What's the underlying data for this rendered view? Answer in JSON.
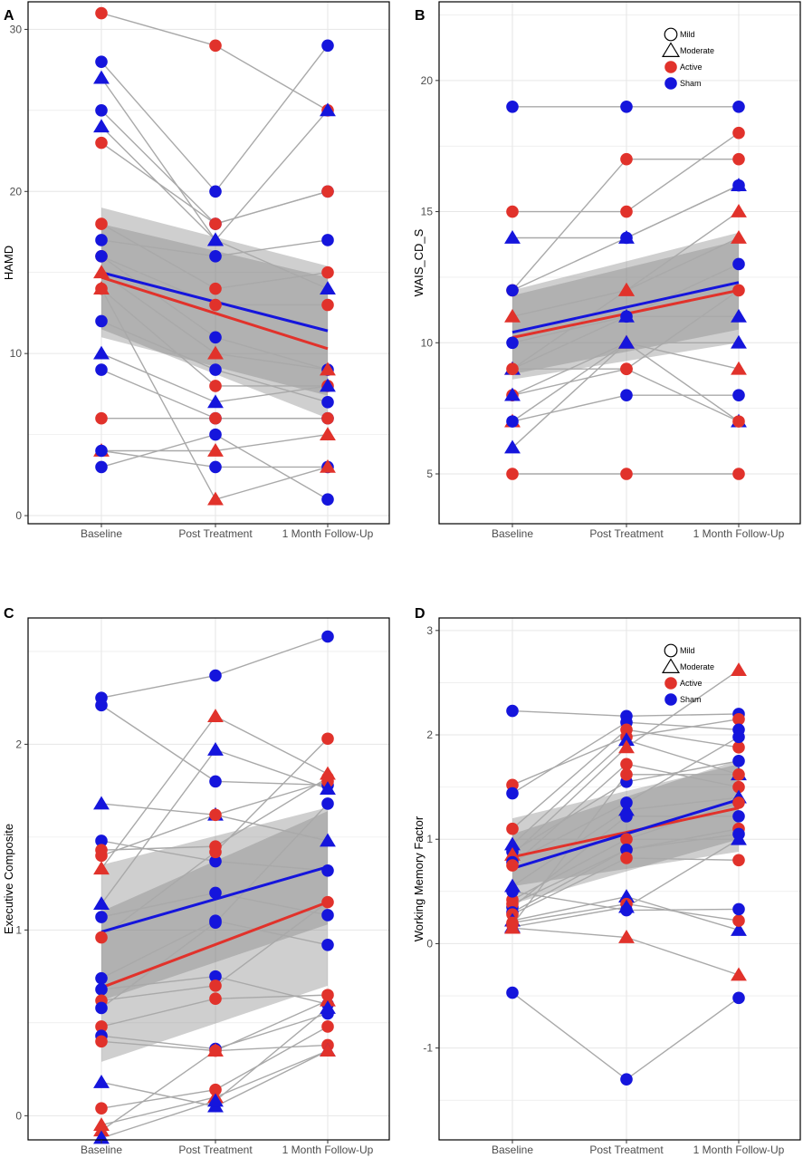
{
  "colors": {
    "active": "#E1322B",
    "sham": "#1515DC",
    "line": "#A9A9A9",
    "band": "#808080",
    "grid": "#E6E6E6",
    "frame": "#000000"
  },
  "legend": {
    "mild": "Mild",
    "moderate": "Moderate",
    "active": "Active",
    "sham": "Sham"
  },
  "chart_data": [
    {
      "panel": "A",
      "type": "scatter",
      "xlabel": "",
      "ylabel": "HAMD",
      "categories": [
        "Baseline",
        "Post Treatment",
        "1 Month Follow-Up"
      ],
      "ylim": [
        -0.5,
        31.7
      ],
      "yticks": [
        0,
        10,
        20,
        30
      ],
      "legend": false,
      "points": [
        {
          "g": "active",
          "s": "mild",
          "v": [
            31,
            29,
            25
          ]
        },
        {
          "g": "sham",
          "s": "mild",
          "v": [
            28,
            20,
            29
          ]
        },
        {
          "g": "sham",
          "s": "moderate",
          "v": [
            27,
            17,
            25
          ]
        },
        {
          "g": "sham",
          "s": "mild",
          "v": [
            25,
            18,
            20
          ]
        },
        {
          "g": "sham",
          "s": "moderate",
          "v": [
            24,
            17,
            14
          ]
        },
        {
          "g": "active",
          "s": "mild",
          "v": [
            23,
            18,
            20
          ]
        },
        {
          "g": "active",
          "s": "mild",
          "v": [
            18,
            14,
            15
          ]
        },
        {
          "g": "sham",
          "s": "mild",
          "v": [
            17,
            16,
            17
          ]
        },
        {
          "g": "active",
          "s": "mild",
          "v": [
            16,
            13,
            13
          ]
        },
        {
          "g": "sham",
          "s": "mild",
          "v": [
            16,
            11,
            9
          ]
        },
        {
          "g": "active",
          "s": "moderate",
          "v": [
            15,
            10,
            9
          ]
        },
        {
          "g": "active",
          "s": "mild",
          "v": [
            14,
            8,
            8
          ]
        },
        {
          "g": "sham",
          "s": "mild",
          "v": [
            12,
            9,
            7
          ]
        },
        {
          "g": "sham",
          "s": "moderate",
          "v": [
            10,
            7,
            8
          ]
        },
        {
          "g": "sham",
          "s": "mild",
          "v": [
            9,
            6,
            6
          ]
        },
        {
          "g": "active",
          "s": "mild",
          "v": [
            6,
            6,
            6
          ]
        },
        {
          "g": "active",
          "s": "moderate",
          "v": [
            4,
            4,
            5
          ]
        },
        {
          "g": "sham",
          "s": "mild",
          "v": [
            4,
            3,
            3
          ]
        },
        {
          "g": "sham",
          "s": "mild",
          "v": [
            3,
            5,
            1
          ]
        },
        {
          "g": "active",
          "s": "moderate",
          "v": [
            14,
            1,
            3
          ]
        }
      ],
      "fits": [
        {
          "g": "active",
          "start": 14.7,
          "end": 10.3,
          "band_lo_start": 11.5,
          "band_hi_start": 18.0,
          "band_lo_end": 6.0,
          "band_hi_end": 14.7
        },
        {
          "g": "sham",
          "start": 15.0,
          "end": 11.4,
          "band_lo_start": 11.0,
          "band_hi_start": 19.0,
          "band_lo_end": 7.4,
          "band_hi_end": 15.4
        }
      ]
    },
    {
      "panel": "B",
      "type": "scatter",
      "xlabel": "",
      "ylabel": "WAIS_CD_S",
      "categories": [
        "Baseline",
        "Post Treatment",
        "1 Month Follow-Up"
      ],
      "ylim": [
        3.1,
        23.0
      ],
      "yticks": [
        5,
        10,
        15,
        20
      ],
      "legend": true,
      "points": [
        {
          "g": "sham",
          "s": "mild",
          "v": [
            19,
            19,
            19
          ]
        },
        {
          "g": "active",
          "s": "mild",
          "v": [
            15,
            15,
            18
          ]
        },
        {
          "g": "sham",
          "s": "moderate",
          "v": [
            14,
            14,
            16
          ]
        },
        {
          "g": "active",
          "s": "mild",
          "v": [
            12,
            17,
            17
          ]
        },
        {
          "g": "sham",
          "s": "mild",
          "v": [
            12,
            14,
            16
          ]
        },
        {
          "g": "active",
          "s": "moderate",
          "v": [
            11,
            12,
            15
          ]
        },
        {
          "g": "sham",
          "s": "mild",
          "v": [
            10,
            11,
            13
          ]
        },
        {
          "g": "active",
          "s": "moderate",
          "v": [
            9,
            12,
            14
          ]
        },
        {
          "g": "sham",
          "s": "moderate",
          "v": [
            9,
            11,
            11
          ]
        },
        {
          "g": "active",
          "s": "mild",
          "v": [
            8,
            9,
            12
          ]
        },
        {
          "g": "sham",
          "s": "moderate",
          "v": [
            8,
            10,
            10
          ]
        },
        {
          "g": "active",
          "s": "moderate",
          "v": [
            7,
            10,
            9
          ]
        },
        {
          "g": "sham",
          "s": "mild",
          "v": [
            7,
            8,
            8
          ]
        },
        {
          "g": "sham",
          "s": "moderate",
          "v": [
            6,
            10,
            7
          ]
        },
        {
          "g": "active",
          "s": "mild",
          "v": [
            5,
            5,
            5
          ]
        },
        {
          "g": "active",
          "s": "mild",
          "v": [
            9,
            9,
            7
          ]
        }
      ],
      "fits": [
        {
          "g": "active",
          "start": 10.2,
          "end": 12.0,
          "band_lo_start": 8.6,
          "band_hi_start": 11.8,
          "band_lo_end": 10.0,
          "band_hi_end": 13.9
        },
        {
          "g": "sham",
          "start": 10.4,
          "end": 12.3,
          "band_lo_start": 8.8,
          "band_hi_start": 12.0,
          "band_lo_end": 10.5,
          "band_hi_end": 14.2
        }
      ]
    },
    {
      "panel": "C",
      "type": "scatter",
      "xlabel": "",
      "ylabel": "Executive Composite",
      "categories": [
        "Baseline",
        "Post Treatment",
        "1 Month Follow-Up"
      ],
      "ylim": [
        -0.13,
        2.68
      ],
      "yticks": [
        0,
        1,
        2
      ],
      "legend": false,
      "points": [
        {
          "g": "sham",
          "s": "mild",
          "v": [
            2.25,
            2.37,
            2.58
          ]
        },
        {
          "g": "sham",
          "s": "mild",
          "v": [
            2.21,
            1.8,
            1.78
          ]
        },
        {
          "g": "sham",
          "s": "moderate",
          "v": [
            1.68,
            1.62,
            1.48
          ]
        },
        {
          "g": "sham",
          "s": "mild",
          "v": [
            1.48,
            1.37,
            1.32
          ]
        },
        {
          "g": "active",
          "s": "mild",
          "v": [
            1.43,
            1.45,
            1.82
          ]
        },
        {
          "g": "active",
          "s": "mild",
          "v": [
            1.4,
            1.62,
            1.8
          ]
        },
        {
          "g": "active",
          "s": "moderate",
          "v": [
            1.33,
            2.15,
            1.84
          ]
        },
        {
          "g": "sham",
          "s": "moderate",
          "v": [
            1.14,
            1.97,
            1.76
          ]
        },
        {
          "g": "sham",
          "s": "mild",
          "v": [
            1.07,
            1.2,
            1.08
          ]
        },
        {
          "g": "active",
          "s": "mild",
          "v": [
            0.96,
            1.42,
            2.03
          ]
        },
        {
          "g": "sham",
          "s": "mild",
          "v": [
            0.74,
            1.05,
            0.92
          ]
        },
        {
          "g": "sham",
          "s": "mild",
          "v": [
            0.68,
            0.75,
            0.6
          ]
        },
        {
          "g": "active",
          "s": "mild",
          "v": [
            0.62,
            0.7,
            1.15
          ]
        },
        {
          "g": "sham",
          "s": "mild",
          "v": [
            0.58,
            1.04,
            1.68
          ]
        },
        {
          "g": "active",
          "s": "mild",
          "v": [
            0.48,
            0.63,
            0.65
          ]
        },
        {
          "g": "sham",
          "s": "mild",
          "v": [
            0.43,
            0.36,
            0.55
          ]
        },
        {
          "g": "active",
          "s": "mild",
          "v": [
            0.4,
            0.35,
            0.38
          ]
        },
        {
          "g": "sham",
          "s": "moderate",
          "v": [
            0.18,
            0.05,
            0.35
          ]
        },
        {
          "g": "active",
          "s": "mild",
          "v": [
            0.04,
            0.14,
            0.48
          ]
        },
        {
          "g": "active",
          "s": "moderate",
          "v": [
            -0.05,
            0.1,
            0.35
          ]
        },
        {
          "g": "active",
          "s": "moderate",
          "v": [
            -0.08,
            0.35,
            0.62
          ]
        },
        {
          "g": "sham",
          "s": "moderate",
          "v": [
            -0.12,
            0.08,
            0.58
          ]
        }
      ],
      "fits": [
        {
          "g": "active",
          "start": 0.69,
          "end": 1.15,
          "band_lo_start": 0.29,
          "band_hi_start": 1.1,
          "band_lo_end": 0.7,
          "band_hi_end": 1.64
        },
        {
          "g": "sham",
          "start": 0.99,
          "end": 1.34,
          "band_lo_start": 0.62,
          "band_hi_start": 1.35,
          "band_lo_end": 1.03,
          "band_hi_end": 1.66
        }
      ]
    },
    {
      "panel": "D",
      "type": "scatter",
      "xlabel": "",
      "ylabel": "Working Memory Factor",
      "categories": [
        "Baseline",
        "Post Treatment",
        "1 Month Follow-Up"
      ],
      "ylim": [
        -1.88,
        3.12
      ],
      "yticks": [
        -1,
        0,
        1,
        2,
        3
      ],
      "legend": true,
      "points": [
        {
          "g": "sham",
          "s": "mild",
          "v": [
            2.23,
            2.18,
            2.2
          ]
        },
        {
          "g": "active",
          "s": "mild",
          "v": [
            1.52,
            1.98,
            2.15
          ]
        },
        {
          "g": "sham",
          "s": "mild",
          "v": [
            1.44,
            2.12,
            2.05
          ]
        },
        {
          "g": "active",
          "s": "mild",
          "v": [
            1.1,
            2.05,
            1.88
          ]
        },
        {
          "g": "sham",
          "s": "moderate",
          "v": [
            0.95,
            1.95,
            1.62
          ]
        },
        {
          "g": "sham",
          "s": "mild",
          "v": [
            0.88,
            1.55,
            1.75
          ]
        },
        {
          "g": "active",
          "s": "moderate",
          "v": [
            0.85,
            1.88,
            2.62
          ]
        },
        {
          "g": "sham",
          "s": "mild",
          "v": [
            0.78,
            1.35,
            1.98
          ]
        },
        {
          "g": "active",
          "s": "mild",
          "v": [
            0.75,
            1.72,
            1.5
          ]
        },
        {
          "g": "sham",
          "s": "moderate",
          "v": [
            0.55,
            1.28,
            1.4
          ]
        },
        {
          "g": "active",
          "s": "mild",
          "v": [
            0.42,
            1.0,
            1.35
          ]
        },
        {
          "g": "sham",
          "s": "mild",
          "v": [
            0.35,
            1.22,
            1.22
          ]
        },
        {
          "g": "active",
          "s": "mild",
          "v": [
            0.38,
            0.9,
            1.1
          ]
        },
        {
          "g": "sham",
          "s": "mild",
          "v": [
            0.3,
            0.9,
            1.05
          ]
        },
        {
          "g": "active",
          "s": "mild",
          "v": [
            0.28,
            0.82,
            0.8
          ]
        },
        {
          "g": "sham",
          "s": "moderate",
          "v": [
            0.22,
            0.45,
            0.13
          ]
        },
        {
          "g": "active",
          "s": "mild",
          "v": [
            0.2,
            0.38,
            0.22
          ]
        },
        {
          "g": "sham",
          "s": "moderate",
          "v": [
            0.16,
            0.35,
            1.0
          ]
        },
        {
          "g": "active",
          "s": "moderate",
          "v": [
            0.15,
            0.06,
            -0.3
          ]
        },
        {
          "g": "sham",
          "s": "mild",
          "v": [
            -0.47,
            -1.3,
            -0.52
          ]
        },
        {
          "g": "sham",
          "s": "mild",
          "v": [
            0.5,
            0.32,
            0.33
          ]
        },
        {
          "g": "active",
          "s": "mild",
          "v": [
            0.18,
            1.62,
            1.62
          ]
        }
      ],
      "fits": [
        {
          "g": "active",
          "start": 0.83,
          "end": 1.3,
          "band_lo_start": 0.55,
          "band_hi_start": 1.2,
          "band_lo_end": 0.88,
          "band_hi_end": 1.72
        },
        {
          "g": "sham",
          "start": 0.72,
          "end": 1.38,
          "band_lo_start": 0.38,
          "band_hi_start": 1.05,
          "band_lo_end": 1.0,
          "band_hi_end": 1.76
        }
      ]
    }
  ]
}
